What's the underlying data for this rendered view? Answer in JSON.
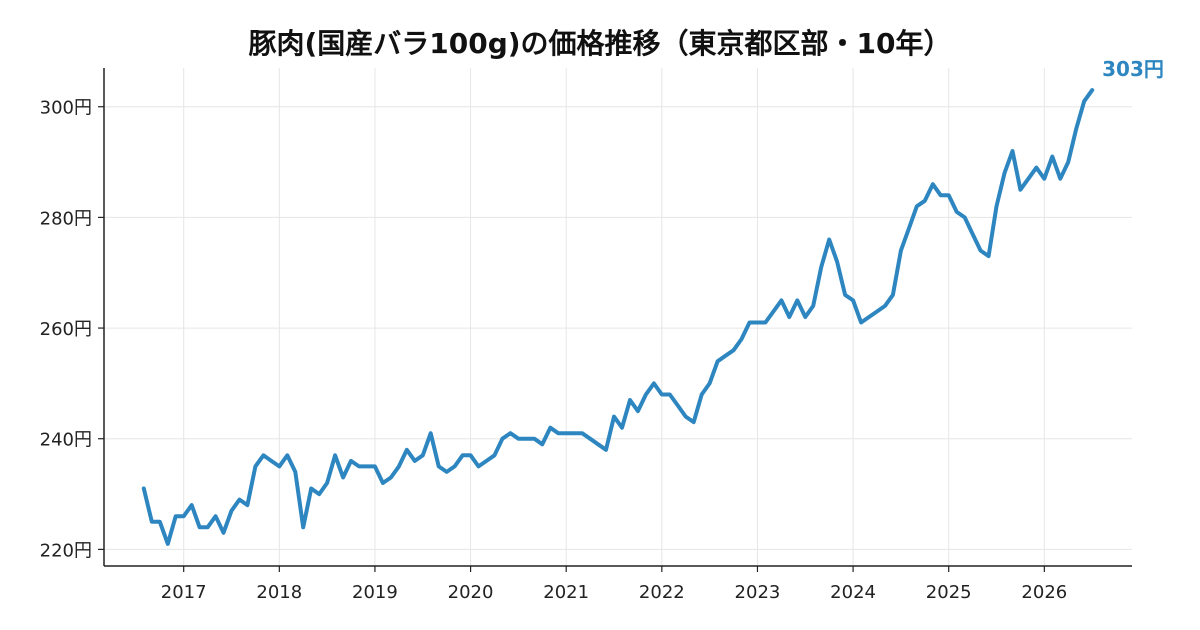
{
  "chart_data": {
    "type": "line",
    "title": "豚肉(国産バラ100g)の価格推移（東京都区部・10年）",
    "xlabel": "",
    "ylabel": "",
    "x_tick_labels": [
      "2017",
      "2018",
      "2019",
      "2020",
      "2021",
      "2022",
      "2023",
      "2024",
      "2025",
      "2026"
    ],
    "y_tick_labels": [
      "220円",
      "240円",
      "260円",
      "280円",
      "300円"
    ],
    "y_ticks": [
      220,
      240,
      260,
      280,
      300
    ],
    "ylim": [
      217,
      307
    ],
    "xlim": [
      "2016-03",
      "2026-12"
    ],
    "grid": true,
    "legend": "none",
    "line_color": "#2e86c1",
    "end_label": "303円",
    "series": [
      {
        "x": [
          "2016-08",
          "2016-09",
          "2016-10",
          "2016-11",
          "2016-12",
          "2017-01",
          "2017-02",
          "2017-03",
          "2017-04",
          "2017-05",
          "2017-06",
          "2017-07",
          "2017-08",
          "2017-09",
          "2017-10",
          "2017-11",
          "2017-12",
          "2018-01",
          "2018-02",
          "2018-03",
          "2018-04",
          "2018-05",
          "2018-06",
          "2018-07",
          "2018-08",
          "2018-09",
          "2018-10",
          "2018-11",
          "2018-12",
          "2019-01",
          "2019-02",
          "2019-03",
          "2019-04",
          "2019-05",
          "2019-06",
          "2019-07",
          "2019-08",
          "2019-09",
          "2019-10",
          "2019-11",
          "2019-12",
          "2020-01",
          "2020-02",
          "2020-03",
          "2020-04",
          "2020-05",
          "2020-06",
          "2020-07",
          "2020-08",
          "2020-09",
          "2020-10",
          "2020-11",
          "2020-12",
          "2021-01",
          "2021-02",
          "2021-03",
          "2021-04",
          "2021-05",
          "2021-06",
          "2021-07",
          "2021-08",
          "2021-09",
          "2021-10",
          "2021-11",
          "2021-12",
          "2022-01",
          "2022-02",
          "2022-03",
          "2022-04",
          "2022-05",
          "2022-06",
          "2022-07",
          "2022-08",
          "2022-09",
          "2022-10",
          "2022-11",
          "2022-12",
          "2023-01",
          "2023-02",
          "2023-03",
          "2023-04",
          "2023-05",
          "2023-06",
          "2023-07",
          "2023-08",
          "2023-09",
          "2023-10",
          "2023-11",
          "2023-12",
          "2024-01",
          "2024-02",
          "2024-03",
          "2024-04",
          "2024-05",
          "2024-06",
          "2024-07",
          "2024-08",
          "2024-09",
          "2024-10",
          "2024-11",
          "2024-12",
          "2025-01",
          "2025-02",
          "2025-03",
          "2025-04",
          "2025-05",
          "2025-06",
          "2025-07",
          "2025-08",
          "2025-09",
          "2025-10",
          "2025-11",
          "2025-12",
          "2026-01",
          "2026-02",
          "2026-03",
          "2026-04",
          "2026-05",
          "2026-06",
          "2026-07"
        ],
        "values": [
          231,
          225,
          225,
          221,
          226,
          226,
          228,
          224,
          224,
          226,
          223,
          227,
          229,
          228,
          235,
          237,
          236,
          235,
          237,
          234,
          224,
          231,
          230,
          232,
          237,
          233,
          236,
          235,
          235,
          235,
          232,
          233,
          235,
          238,
          236,
          237,
          241,
          235,
          234,
          235,
          237,
          237,
          235,
          236,
          237,
          240,
          241,
          240,
          240,
          240,
          239,
          242,
          241,
          241,
          241,
          241,
          240,
          239,
          238,
          244,
          242,
          247,
          245,
          248,
          250,
          248,
          248,
          246,
          244,
          243,
          248,
          250,
          254,
          255,
          256,
          258,
          261,
          261,
          261,
          263,
          265,
          262,
          265,
          262,
          264,
          271,
          276,
          272,
          266,
          265,
          261,
          262,
          263,
          264,
          266,
          274,
          278,
          282,
          283,
          286,
          284,
          284,
          281,
          280,
          277,
          274,
          273,
          282,
          288,
          292,
          285,
          287,
          289,
          287,
          291,
          287,
          290,
          296,
          301,
          303
        ]
      }
    ]
  }
}
